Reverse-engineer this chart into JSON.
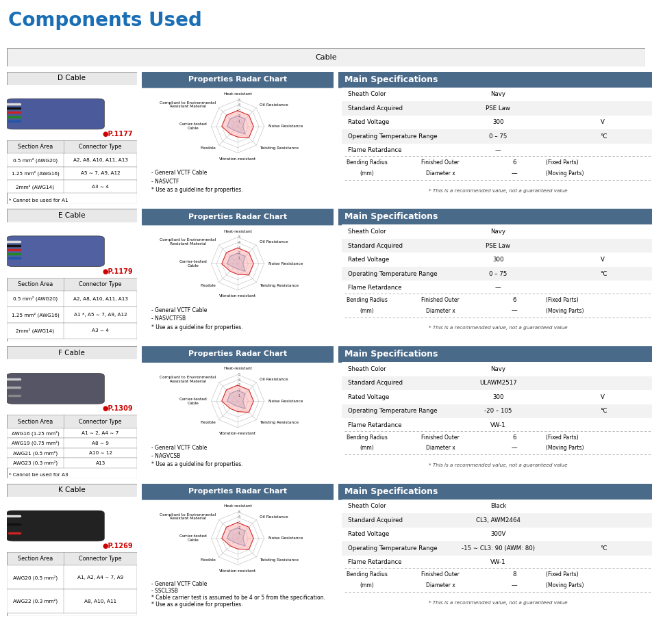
{
  "title": "Components Used",
  "title_color": "#1a6eb5",
  "section_header": "Cable",
  "cables": [
    {
      "name": "D Cable",
      "part_num": "●P.1177",
      "part_color": "#cc0000",
      "wire_colors": [
        "#2255aa",
        "#228822",
        "#cc2222",
        "#111111",
        "#dddddd"
      ],
      "jacket_color": "#4a5a9a",
      "section_area": [
        "0.5 mm² (AWG20)",
        "1.25 mm² (AWG16)",
        "2mm² (AWG14)"
      ],
      "connector_type": [
        "A2, A8, A10, A11, A13",
        "A5 ∼ 7, A9, A12",
        "A3 ∼ 4"
      ],
      "note": "* Cannot be used for A1",
      "radar_notes": [
        "- General VCTF Cable",
        "- NASVCTF",
        "* Use as a guideline for properties."
      ],
      "specs": {
        "Sheath Color": "Navy",
        "Standard Acquired": "PSE Law",
        "Rated Voltage": "300",
        "Rated Voltage Unit": "V",
        "Operating Temperature Range": "0 – 75",
        "Operating Temperature Unit": "°C",
        "Flame Retardance": "—",
        "Bending Fixed": "6",
        "Bending Moving": "—",
        "note": "* This is a recommended value, not a guaranteed value"
      }
    },
    {
      "name": "E Cable",
      "part_num": "●P.1179",
      "part_color": "#cc0000",
      "wire_colors": [
        "#2255aa",
        "#228822",
        "#cc2222",
        "#111111",
        "#dddddd"
      ],
      "jacket_color": "#5060a0",
      "section_area": [
        "0.5 mm² (AWG20)",
        "1.25 mm² (AWG16)",
        "2mm² (AWG14)"
      ],
      "connector_type": [
        "A2, A8, A10, A11, A13",
        "A1 *, A5 ∼ 7, A9, A12",
        "A3 ∼ 4"
      ],
      "note": "",
      "radar_notes": [
        "- General VCTF Cable",
        "- NASVCTFSB",
        "* Use as a guideline for properties."
      ],
      "specs": {
        "Sheath Color": "Navy",
        "Standard Acquired": "PSE Law",
        "Rated Voltage": "300",
        "Rated Voltage Unit": "V",
        "Operating Temperature Range": "0 – 75",
        "Operating Temperature Unit": "°C",
        "Flame Retardance": "—",
        "Bending Fixed": "6",
        "Bending Moving": "—",
        "note": "* This is a recommended value, not a guaranteed value"
      }
    },
    {
      "name": "F Cable",
      "part_num": "●P.1309",
      "part_color": "#cc0000",
      "wire_colors": [
        "#888888",
        "#aaaaaa",
        "#cccccc"
      ],
      "jacket_color": "#555566",
      "section_area": [
        "AWG16 (1.25 mm²)",
        "AWG19 (0.75 mm²)",
        "AWG21 (0.5 mm²)",
        "AWG23 (0.3 mm²)"
      ],
      "connector_type": [
        "A1 ∼ 2, A4 ∼ 7",
        "A8 ∼ 9",
        "A10 ∼ 12",
        "A13"
      ],
      "note": "* Cannot be used for A3",
      "radar_notes": [
        "- General VCTF Cable",
        "- NAGVCSB",
        "* Use as a guideline for properties."
      ],
      "specs": {
        "Sheath Color": "Navy",
        "Standard Acquired": "ULAWM2517",
        "Rated Voltage": "300",
        "Rated Voltage Unit": "V",
        "Operating Temperature Range": "-20 – 105",
        "Operating Temperature Unit": "°C",
        "Flame Retardance": "VW-1",
        "Bending Fixed": "6",
        "Bending Moving": "—",
        "note": "* This is a recommended value, not a guaranteed value"
      }
    },
    {
      "name": "K Cable",
      "part_num": "●P.1269",
      "part_color": "#cc0000",
      "wire_colors": [
        "#cc2222",
        "#111111",
        "#dddddd"
      ],
      "jacket_color": "#222222",
      "section_area": [
        "AWG20 (0.5 mm²)",
        "AWG22 (0.3 mm²)"
      ],
      "connector_type": [
        "A1, A2, A4 ∼ 7, A9",
        "A8, A10, A11"
      ],
      "note": "",
      "radar_notes": [
        "- General VCTF Cable",
        "- SSCL3SB",
        "* Cable carrier test is assumed to be 4 or 5 from the specification.",
        "* Use as a guideline for properties."
      ],
      "specs": {
        "Sheath Color": "Black",
        "Standard Acquired": "CL3, AWM2464",
        "Rated Voltage": "300V",
        "Rated Voltage Unit": "",
        "Operating Temperature Range": "-15 ∼ CL3: 90 (AWM: 80)",
        "Operating Temperature Unit": "°C",
        "Flame Retardance": "VW-1",
        "Bending Fixed": "8",
        "Bending Moving": "—",
        "note": "* This is a recommended value, not a guaranteed value"
      }
    }
  ],
  "radar_labels_top": "Heat-resistant",
  "radar_labels_order": [
    "Heat-resistant",
    "Oil Resistance",
    "Noise Resistance",
    "Twisting Resistance",
    "Vibration-resistant",
    "Flexible",
    "Carrier-tested\nCable",
    "Compliant to Environmental\nResistant Material"
  ],
  "radar_data_red": [
    3,
    3,
    3,
    3,
    2,
    2,
    3,
    3
  ],
  "radar_data_blue": [
    2,
    2,
    1,
    2,
    1,
    1,
    2,
    2
  ],
  "header_bg_dark": "#4a6a8a",
  "header_bg_light": "#e0e0e0",
  "border_color": "#888888"
}
